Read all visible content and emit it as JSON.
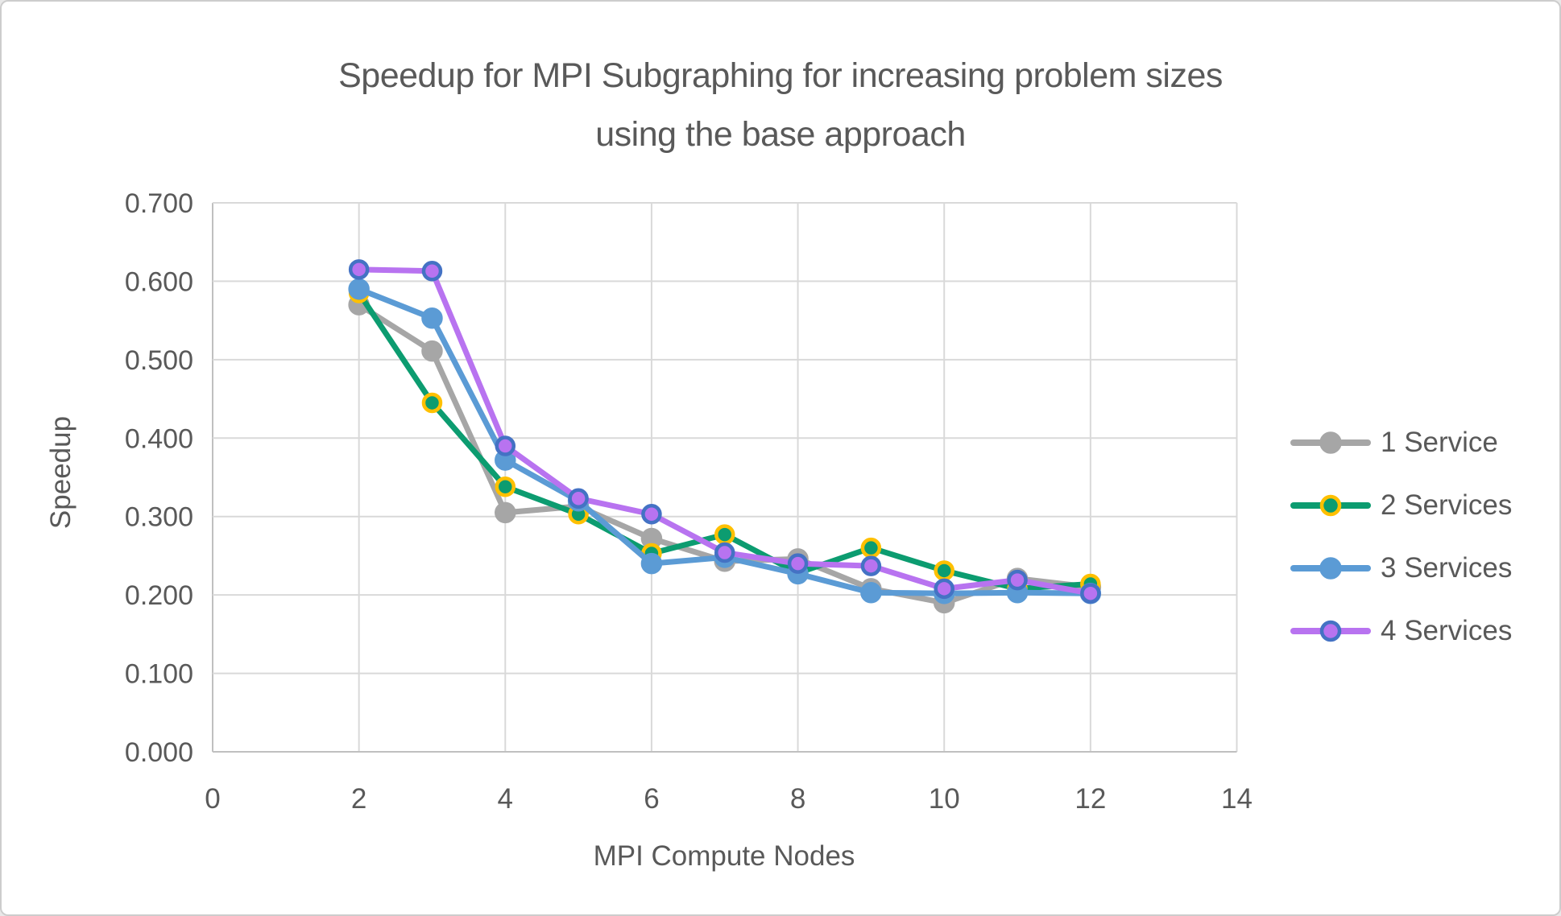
{
  "title": {
    "line1": "Speedup for MPI Subgraphing for increasing problem sizes",
    "line2": "using the base approach"
  },
  "chart_data": {
    "type": "line",
    "title": "Speedup for MPI Subgraphing for increasing problem sizes using the base approach",
    "xlabel": "MPI Compute Nodes",
    "ylabel": "Speedup",
    "xlim": [
      0,
      14
    ],
    "ylim": [
      0.0,
      0.7
    ],
    "x_ticks": [
      0,
      2,
      4,
      6,
      8,
      10,
      12,
      14
    ],
    "y_ticks": [
      0.0,
      0.1,
      0.2,
      0.3,
      0.4,
      0.5,
      0.6,
      0.7
    ],
    "grid": true,
    "legend_position": "right",
    "x": [
      2,
      3,
      4,
      5,
      6,
      7,
      8,
      9,
      10,
      11,
      12
    ],
    "series": [
      {
        "name": "1 Service",
        "color": "#A6A6A6",
        "marker_border": "#A6A6A6",
        "values": [
          0.57,
          0.511,
          0.305,
          0.313,
          0.272,
          0.243,
          0.246,
          0.208,
          0.19,
          0.221,
          0.21
        ]
      },
      {
        "name": "2 Services",
        "color": "#0C9C70",
        "marker_border": "#FFC000",
        "values": [
          0.585,
          0.445,
          0.338,
          0.303,
          0.253,
          0.277,
          0.228,
          0.26,
          0.231,
          0.208,
          0.214
        ]
      },
      {
        "name": "3 Services",
        "color": "#5B9BD5",
        "marker_border": "#5B9BD5",
        "values": [
          0.59,
          0.553,
          0.372,
          0.32,
          0.24,
          0.248,
          0.227,
          0.203,
          0.202,
          0.203,
          0.202
        ]
      },
      {
        "name": "4 Services",
        "color": "#B873F0",
        "marker_border": "#4472C4",
        "values": [
          0.615,
          0.613,
          0.39,
          0.323,
          0.303,
          0.254,
          0.24,
          0.237,
          0.208,
          0.219,
          0.202
        ]
      }
    ]
  },
  "style": {
    "gridline_color": "#D9D9D9",
    "axis_line_color": "#C0C0C0",
    "tick_label_color": "#595959",
    "text_color": "#595959"
  }
}
